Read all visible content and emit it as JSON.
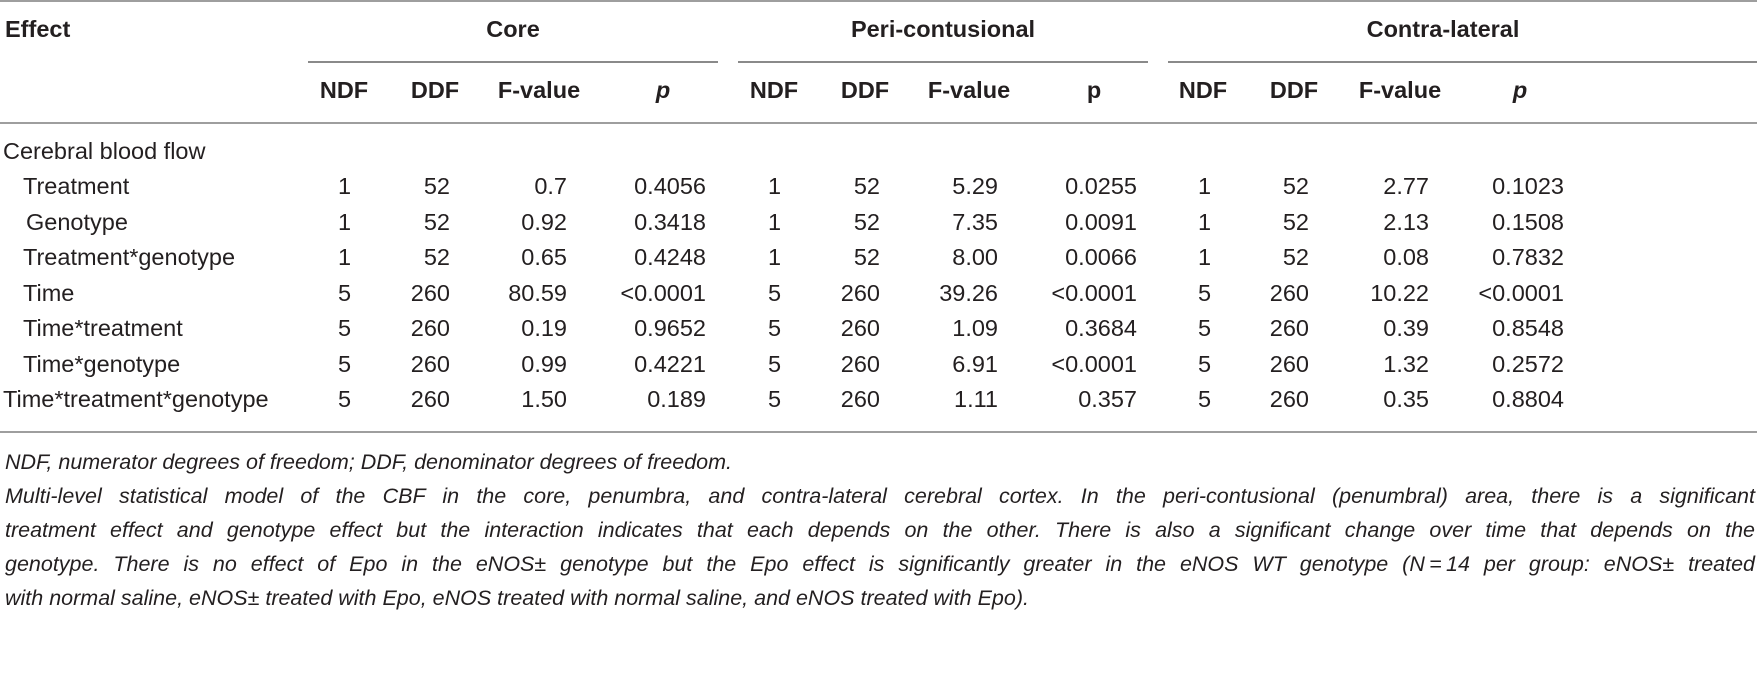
{
  "table": {
    "effect_header": "Effect",
    "groups": [
      "Core",
      "Peri-contusional",
      "Contra-lateral"
    ],
    "subheaders": [
      [
        "NDF",
        "DDF",
        "F-value",
        "p"
      ],
      [
        "NDF",
        "DDF",
        "F-value",
        "p"
      ],
      [
        "NDF",
        "DDF",
        "F-value",
        "p"
      ]
    ],
    "section_label": "Cerebral blood flow",
    "rows": [
      {
        "effect": "Treatment",
        "cells": [
          "1",
          "52",
          "0.7",
          "0.4056",
          "1",
          "52",
          "5.29",
          "0.0255",
          "1",
          "52",
          "2.77",
          "0.1023"
        ]
      },
      {
        "effect": "Genotype",
        "cells": [
          "1",
          "52",
          "0.92",
          "0.3418",
          "1",
          "52",
          "7.35",
          "0.0091",
          "1",
          "52",
          "2.13",
          "0.1508"
        ]
      },
      {
        "effect": "Treatment*genotype",
        "cells": [
          "1",
          "52",
          "0.65",
          "0.4248",
          "1",
          "52",
          "8.00",
          "0.0066",
          "1",
          "52",
          "0.08",
          "0.7832"
        ]
      },
      {
        "effect": "Time",
        "cells": [
          "5",
          "260",
          "80.59",
          "<0.0001",
          "5",
          "260",
          "39.26",
          "<0.0001",
          "5",
          "260",
          "10.22",
          "<0.0001"
        ]
      },
      {
        "effect": "Time*treatment",
        "cells": [
          "5",
          "260",
          "0.19",
          "0.9652",
          "5",
          "260",
          "1.09",
          "0.3684",
          "5",
          "260",
          "0.39",
          "0.8548"
        ]
      },
      {
        "effect": "Time*genotype",
        "cells": [
          "5",
          "260",
          "0.99",
          "0.4221",
          "5",
          "260",
          "6.91",
          "<0.0001",
          "5",
          "260",
          "1.32",
          "0.2572"
        ]
      },
      {
        "effect": "Time*treatment*genotype",
        "cells": [
          "5",
          "260",
          "1.50",
          "0.189",
          "5",
          "260",
          "1.11",
          "0.357",
          "5",
          "260",
          "0.35",
          "0.8804"
        ]
      }
    ]
  },
  "footnotes": {
    "abbrev": "NDF, numerator degrees of freedom; DDF, denominator degrees of freedom.",
    "line1": "Multi-level statistical model of the CBF in the core, penumbra, and contra-lateral cerebral cortex. In the peri-contusional (penumbral) area, there is a significant",
    "line2": "treatment effect and genotype effect but the interaction indicates that each depends on the other. There is also a significant change over time that depends on the",
    "line3": "genotype. There is no effect of Epo in the eNOS± genotype but the Epo effect is significantly greater in the eNOS WT genotype (N = 14 per group: eNOS± treated",
    "line4": "with normal saline, eNOS± treated with Epo, eNOS treated with normal saline, and eNOS treated with Epo)."
  }
}
